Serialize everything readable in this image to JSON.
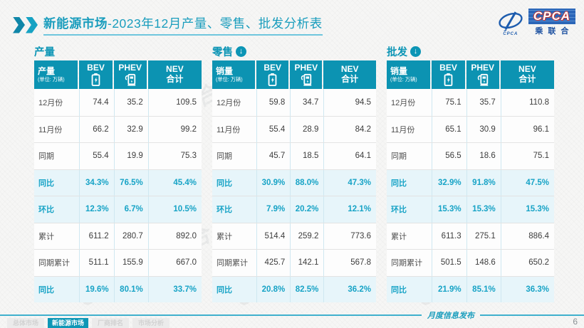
{
  "header": {
    "title_highlight": "新能源市场",
    "title_rest": "-2023年12月产量、零售、批发分析表",
    "logo": {
      "name": "CPCA",
      "subtitle": "乘联合",
      "swoosh_caption": "CPCA"
    }
  },
  "watermark_text": "CPCA 乘联合",
  "tables": [
    {
      "section_title": "产量",
      "arrow_icon": false,
      "header": {
        "label": "产量",
        "unit": "(单位: 万辆)",
        "col1": "BEV",
        "col2": "PHEV",
        "col3_line1": "NEV",
        "col3_line2": "合计"
      },
      "rows": [
        {
          "label": "12月份",
          "type": "normal",
          "values": [
            "74.4",
            "35.2",
            "109.5"
          ]
        },
        {
          "label": "11月份",
          "type": "normal",
          "values": [
            "66.2",
            "32.9",
            "99.2"
          ]
        },
        {
          "label": "同期",
          "type": "normal",
          "values": [
            "55.4",
            "19.9",
            "75.3"
          ]
        },
        {
          "label": "同比",
          "type": "highlight",
          "values": [
            "34.3%",
            "76.5%",
            "45.4%"
          ]
        },
        {
          "label": "环比",
          "type": "highlight",
          "values": [
            "12.3%",
            "6.7%",
            "10.5%"
          ]
        },
        {
          "label": "累计",
          "type": "normal",
          "values": [
            "611.2",
            "280.7",
            "892.0"
          ]
        },
        {
          "label": "同期累计",
          "type": "normal",
          "values": [
            "511.1",
            "155.9",
            "667.0"
          ]
        },
        {
          "label": "同比",
          "type": "highlight",
          "values": [
            "19.6%",
            "80.1%",
            "33.7%"
          ]
        }
      ]
    },
    {
      "section_title": "零售",
      "arrow_icon": true,
      "header": {
        "label": "销量",
        "unit": "(单位: 万辆)",
        "col1": "BEV",
        "col2": "PHEV",
        "col3_line1": "NEV",
        "col3_line2": "合计"
      },
      "rows": [
        {
          "label": "12月份",
          "type": "normal",
          "values": [
            "59.8",
            "34.7",
            "94.5"
          ]
        },
        {
          "label": "11月份",
          "type": "normal",
          "values": [
            "55.4",
            "28.9",
            "84.2"
          ]
        },
        {
          "label": "同期",
          "type": "normal",
          "values": [
            "45.7",
            "18.5",
            "64.1"
          ]
        },
        {
          "label": "同比",
          "type": "highlight",
          "values": [
            "30.9%",
            "88.0%",
            "47.3%"
          ]
        },
        {
          "label": "环比",
          "type": "highlight",
          "values": [
            "7.9%",
            "20.2%",
            "12.1%"
          ]
        },
        {
          "label": "累计",
          "type": "normal",
          "values": [
            "514.4",
            "259.2",
            "773.6"
          ]
        },
        {
          "label": "同期累计",
          "type": "normal",
          "values": [
            "425.7",
            "142.1",
            "567.8"
          ]
        },
        {
          "label": "同比",
          "type": "highlight",
          "values": [
            "20.8%",
            "82.5%",
            "36.2%"
          ]
        }
      ]
    },
    {
      "section_title": "批发",
      "arrow_icon": true,
      "header": {
        "label": "销量",
        "unit": "(单位: 万辆)",
        "col1": "BEV",
        "col2": "PHEV",
        "col3_line1": "NEV",
        "col3_line2": "合计"
      },
      "rows": [
        {
          "label": "12月份",
          "type": "normal",
          "values": [
            "75.1",
            "35.7",
            "110.8"
          ]
        },
        {
          "label": "11月份",
          "type": "normal",
          "values": [
            "65.1",
            "30.9",
            "96.1"
          ]
        },
        {
          "label": "同期",
          "type": "normal",
          "values": [
            "56.5",
            "18.6",
            "75.1"
          ]
        },
        {
          "label": "同比",
          "type": "highlight",
          "values": [
            "32.9%",
            "91.8%",
            "47.5%"
          ]
        },
        {
          "label": "环比",
          "type": "highlight",
          "values": [
            "15.3%",
            "15.3%",
            "15.3%"
          ]
        },
        {
          "label": "累计",
          "type": "normal",
          "values": [
            "611.3",
            "275.1",
            "886.4"
          ]
        },
        {
          "label": "同期累计",
          "type": "normal",
          "values": [
            "501.5",
            "148.6",
            "650.2"
          ]
        },
        {
          "label": "同比",
          "type": "highlight",
          "values": [
            "21.9%",
            "85.1%",
            "36.3%"
          ]
        }
      ]
    }
  ],
  "footer": {
    "tabs": [
      {
        "label": "总体市场",
        "active": false
      },
      {
        "label": "新能源市场",
        "active": true
      },
      {
        "label": "厂商排名",
        "active": false
      },
      {
        "label": "市场分析",
        "active": false
      }
    ],
    "caption": "月度信息发布",
    "page": "6"
  },
  "colors": {
    "teal_header": "#0c93b2",
    "teal_text": "#1a9dbd",
    "highlight_row_bg": "#e7f5fa",
    "highlight_text": "#17a3c6",
    "logo_blue": "#1d5cae",
    "logo_red": "#c03030"
  },
  "icons": {
    "bev": "battery-icon",
    "phev": "charging-pump-icon",
    "section_arrow": "circle-down-arrow-icon",
    "title_marker": "double-chevron-icon"
  }
}
